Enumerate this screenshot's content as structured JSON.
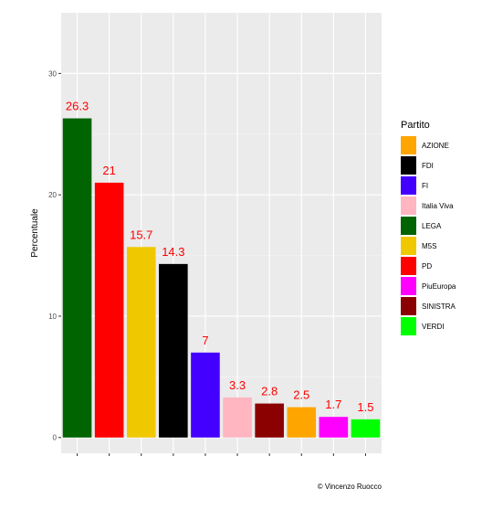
{
  "chart_data": {
    "type": "bar",
    "categories": [
      "LEGA",
      "PD",
      "M5S",
      "FDI",
      "FI",
      "Italia Viva",
      "SINISTRA",
      "AZIONE",
      "PiuEuropa",
      "VERDI"
    ],
    "values": [
      26.3,
      21,
      15.7,
      14.3,
      7,
      3.3,
      2.8,
      2.5,
      1.7,
      1.5
    ],
    "data_labels": [
      "26.3",
      "21",
      "15.7",
      "14.3",
      "7",
      "3.3",
      "2.8",
      "2.5",
      "1.7",
      "1.5"
    ],
    "colors": [
      "#006400",
      "#ff0000",
      "#f0c800",
      "#000000",
      "#4400ff",
      "#ffb6c1",
      "#8b0000",
      "#ffa500",
      "#ff00ff",
      "#00ff00"
    ],
    "xlabel": "",
    "ylabel": "Percentuale",
    "ylim": [
      -1.3,
      35
    ],
    "yticks": [
      0,
      10,
      20,
      30
    ],
    "ytick_labels": [
      "0",
      "10",
      "20",
      "30"
    ],
    "grid": true,
    "background": "#ebebeb",
    "data_label_color": "#ff0000",
    "legend": {
      "title": "Partito",
      "position": "right",
      "entries": [
        {
          "label": "AZIONE",
          "color": "#ffa500"
        },
        {
          "label": "FDI",
          "color": "#000000"
        },
        {
          "label": "FI",
          "color": "#4400ff"
        },
        {
          "label": "Italia Viva",
          "color": "#ffb6c1"
        },
        {
          "label": "LEGA",
          "color": "#006400"
        },
        {
          "label": "M5S",
          "color": "#f0c800"
        },
        {
          "label": "PD",
          "color": "#ff0000"
        },
        {
          "label": "PiuEuropa",
          "color": "#ff00ff"
        },
        {
          "label": "SINISTRA",
          "color": "#8b0000"
        },
        {
          "label": "VERDI",
          "color": "#00ff00"
        }
      ]
    },
    "caption": "© Vincenzo Ruocco"
  }
}
